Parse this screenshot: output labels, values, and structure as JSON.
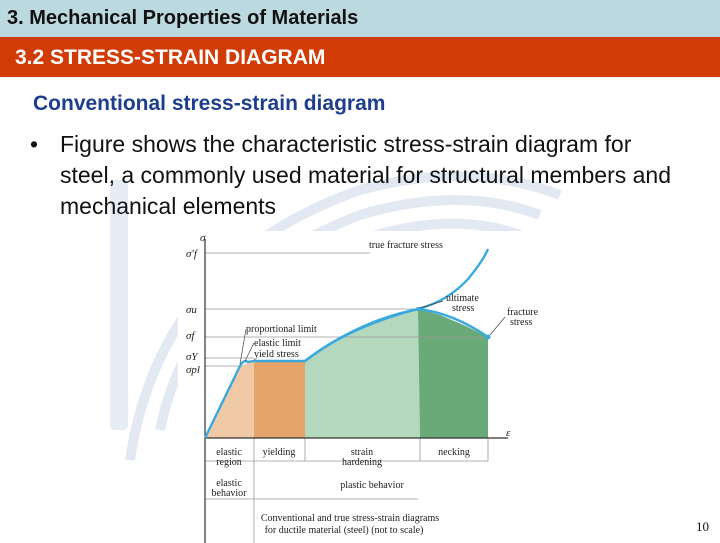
{
  "slide": {
    "section_title": "3. Mechanical Properties of Materials",
    "subsection_title": "3.2 STRESS-STRAIN DIAGRAM",
    "heading": "Conventional stress-strain diagram",
    "bullet": "Figure shows the characteristic stress-strain diagram for steel, a commonly used material for structural members and mechanical elements",
    "page_number": "10"
  },
  "figure": {
    "axis_sigma": "σ",
    "axis_epsilon": "ε",
    "y_symbols": {
      "sigma_f_true": "σ′f",
      "sigma_u": "σu",
      "sigma_f": "σf",
      "sigma_Y": "σY",
      "sigma_pl": "σpl"
    },
    "annotations": {
      "true_fracture_stress": "true fracture stress",
      "ultimate_stress_1": "ultimate",
      "ultimate_stress_2": "stress",
      "fracture_stress_1": "fracture",
      "fracture_stress_2": "stress",
      "proportional_limit": "proportional limit",
      "elastic_limit": "elastic limit",
      "yield_stress": "yield stress"
    },
    "regions": {
      "elastic_region_1": "elastic",
      "elastic_region_2": "region",
      "yielding": "yielding",
      "strain_hardening_1": "strain",
      "strain_hardening_2": "hardening",
      "necking": "necking"
    },
    "behaviors": {
      "elastic_behavior_1": "elastic",
      "elastic_behavior_2": "behavior",
      "plastic_behavior": "plastic behavior"
    },
    "caption_1": "Conventional and true stress-strain diagrams",
    "caption_2": "for ductile material (steel) (not to scale)",
    "colors": {
      "elastic_fill": "#f0c9a6",
      "yielding_fill": "#e4a46a",
      "hardening_fill": "#b4d8bd",
      "necking_fill": "#6aa978",
      "curve": "#39a9de",
      "heading": "#1d3d8f",
      "red_bar": "#d13b05",
      "top_bar": "#bcd9df"
    }
  }
}
